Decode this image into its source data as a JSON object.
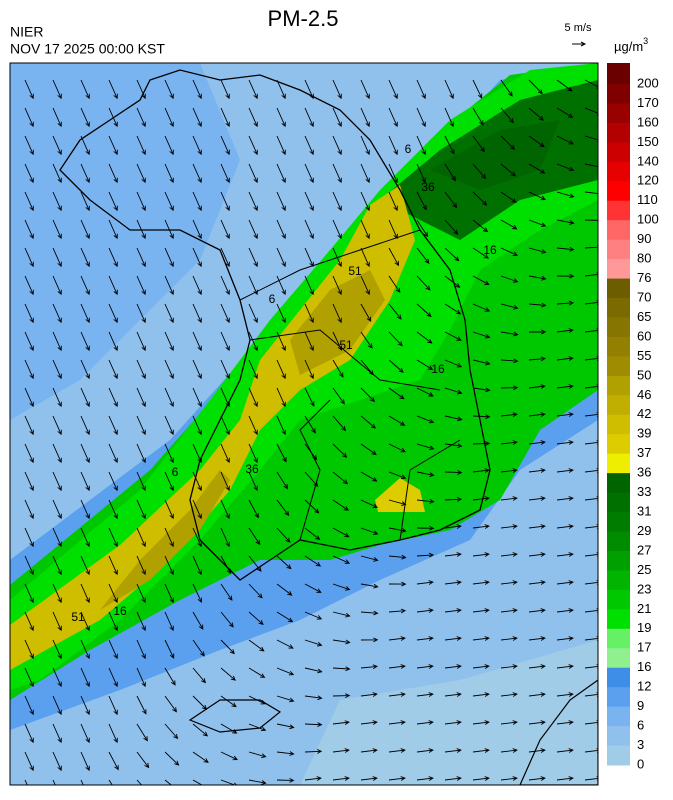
{
  "header": {
    "title": "PM-2.5",
    "agency": "NIER",
    "datetime": "NOV 17 2025 00:00 KST"
  },
  "wind_scale": {
    "label": "5 m/s"
  },
  "legend": {
    "unit": "µg/m",
    "unit_superscript": "3",
    "ticks": [
      200,
      170,
      160,
      150,
      140,
      120,
      110,
      100,
      90,
      80,
      76,
      70,
      65,
      60,
      55,
      50,
      46,
      42,
      39,
      37,
      36,
      33,
      31,
      29,
      27,
      25,
      23,
      21,
      19,
      17,
      16,
      12,
      9,
      6,
      3,
      0
    ],
    "colors": [
      "#6b0000",
      "#800000",
      "#990000",
      "#b30000",
      "#cc0000",
      "#e60000",
      "#ff0000",
      "#ff3333",
      "#ff6666",
      "#ff8080",
      "#ff9999",
      "#6b5d00",
      "#7a6a00",
      "#867500",
      "#948000",
      "#a08c00",
      "#b0a000",
      "#c0ae00",
      "#cfbd00",
      "#ddcc00",
      "#eeee00",
      "#006400",
      "#007000",
      "#007d00",
      "#008c00",
      "#00a000",
      "#00b400",
      "#00c800",
      "#00e000",
      "#66f066",
      "#90f090",
      "#3e8ee8",
      "#5aa0ee",
      "#7ab4f0",
      "#90c0ec",
      "#a0cce8"
    ]
  },
  "contour_labels": [
    6,
    36,
    16,
    51,
    6,
    51,
    16,
    6,
    36,
    51,
    16
  ]
}
